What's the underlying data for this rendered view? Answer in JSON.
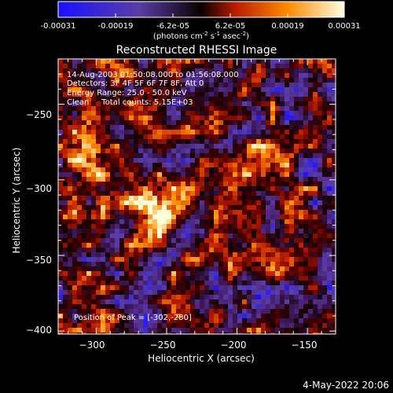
{
  "colorbar": {
    "ticks": [
      "-0.00031",
      "-0.00019",
      "-6.2e-05",
      "6.2e-05",
      "0.00019",
      "0.00031"
    ],
    "units": {
      "prefix": "(photons cm",
      "exp1": "-2",
      "mid1": " s",
      "exp2": "-1",
      "mid2": " asec",
      "exp3": "-2",
      "suffix": ")"
    },
    "range": [
      -0.00031,
      0.00031
    ],
    "colors": [
      "#1a10ff",
      "#5a3ea8",
      "#0a0000",
      "#b81c00",
      "#ff8a00",
      "#ffffe0"
    ]
  },
  "chart_data": {
    "type": "heatmap",
    "title": "Reconstructed RHESSI Image",
    "xlabel": "Heliocentric X (arcsec)",
    "ylabel": "Heliocentric Y (arcsec)",
    "xlim": [
      -327,
      -130
    ],
    "ylim": [
      -402,
      -220
    ],
    "xticks": [
      -300,
      -250,
      -200,
      -150
    ],
    "yticks": [
      -250,
      -300,
      -350,
      -400
    ],
    "xtick_labels": [
      "−300",
      "−250",
      "−200",
      "−150"
    ],
    "ytick_labels": [
      "−250",
      "−300",
      "−350",
      "−400"
    ],
    "annotations": [
      "14-Aug-2003 01:50:08.000 to 01:56:08.000",
      "Detectors: 3F 4F 5F 6F 7F 8F, Att 0",
      "Energy Range: 25.0 - 50.0 keV",
      "Clean     Total counts: 5.15E+03"
    ],
    "peak_label": "Position of Peak = [-302,-280]",
    "peak": [
      -302,
      -280
    ],
    "bright_sources": [
      {
        "x": -305,
        "y": -282
      },
      {
        "x": -183,
        "y": -293
      },
      {
        "x": -260,
        "y": -320
      }
    ]
  },
  "footer": {
    "timestamp": "4-May-2022 20:06"
  }
}
